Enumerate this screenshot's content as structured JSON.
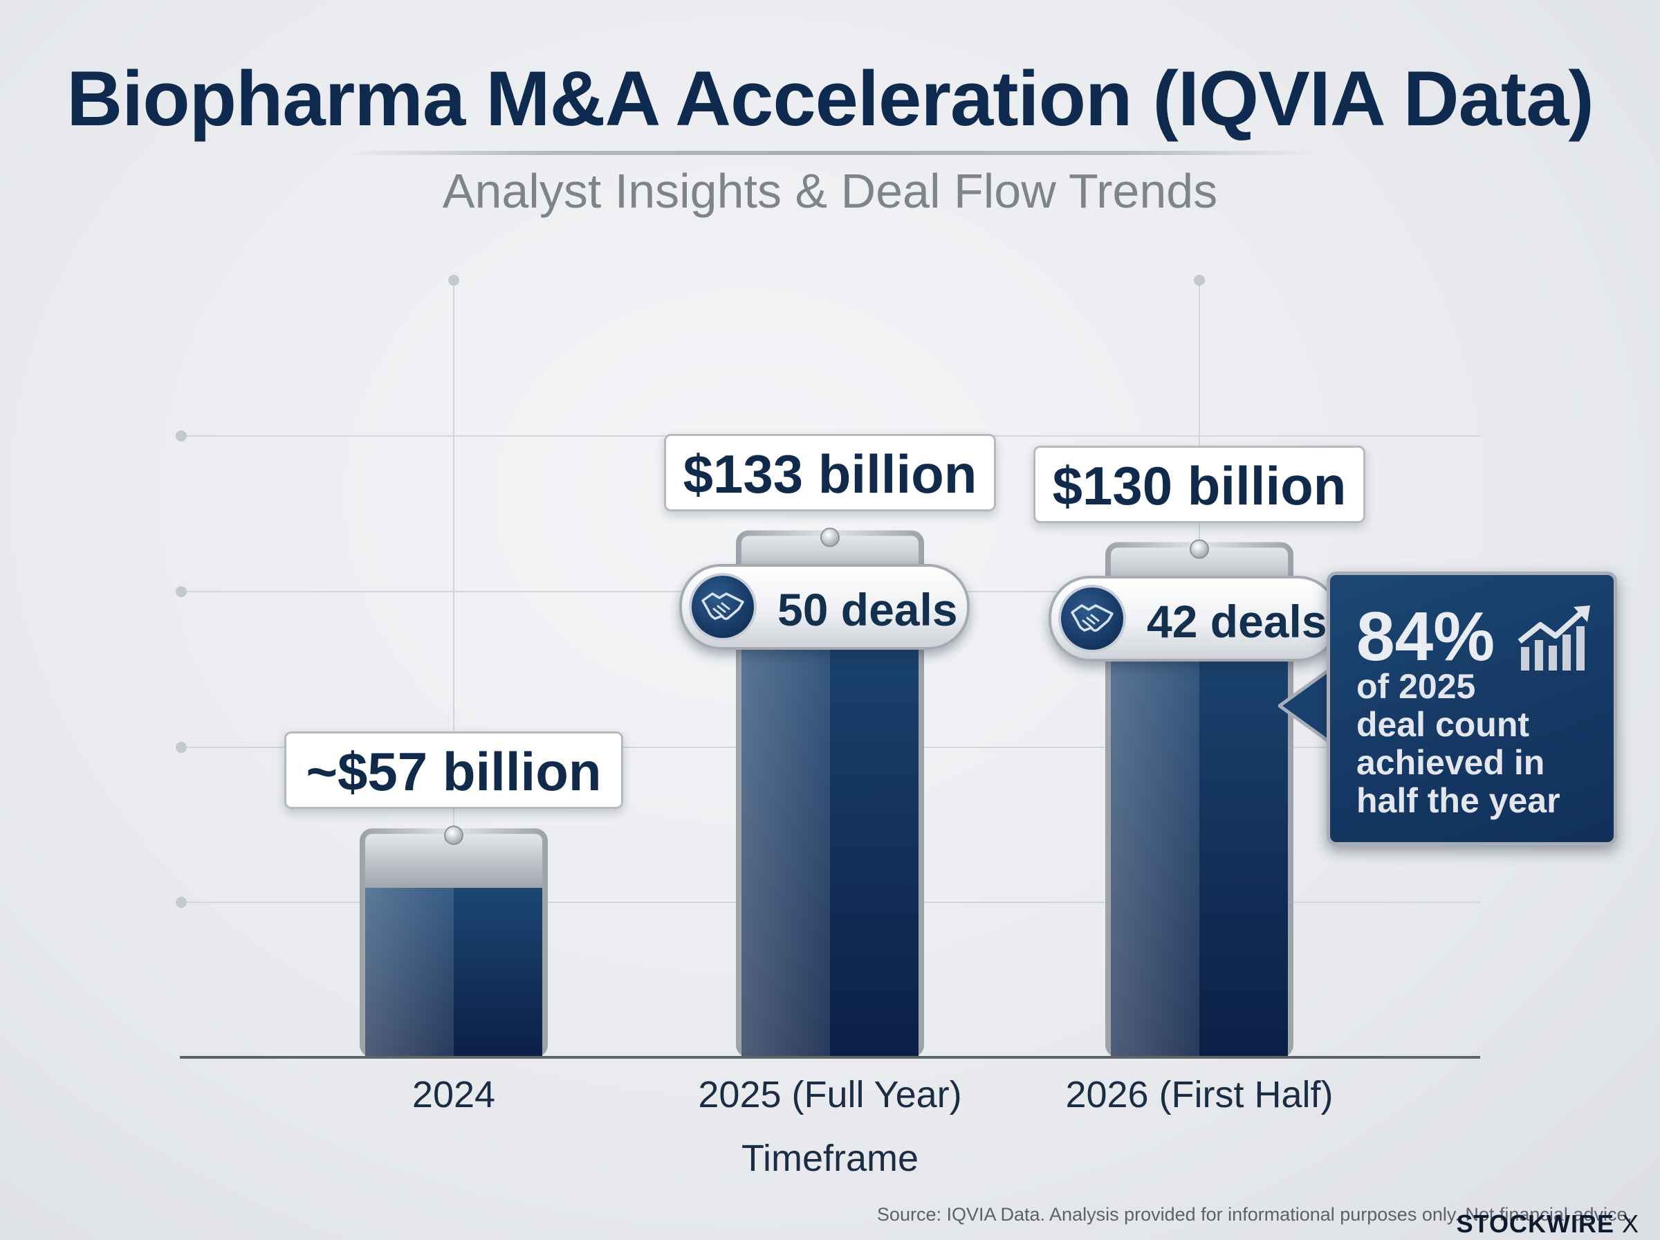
{
  "title": "Biopharma M&A Acceleration (IQVIA Data)",
  "subtitle": "Analyst Insights & Deal Flow Trends",
  "chart_data": {
    "type": "bar",
    "title": "Biopharma M&A Acceleration (IQVIA Data)",
    "subtitle": "Analyst Insights & Deal Flow Trends",
    "xlabel": "Timeframe",
    "ylabel": "",
    "categories": [
      "2024",
      "2025 (Full Year)",
      "2026 (First Half)"
    ],
    "series": [
      {
        "values": [
          57,
          133,
          130
        ]
      }
    ],
    "value_labels": [
      "~$57 billion",
      "$133 billion",
      "$130 billion"
    ],
    "deal_counts": [
      null,
      50,
      42
    ],
    "deal_labels": [
      "",
      "50 deals",
      "42 deals"
    ],
    "ylim": [
      0,
      200
    ],
    "grid": true,
    "colors": {
      "bar": "#0f2a52",
      "bar_top": "#b9bdc4",
      "axis": "#6b6f76"
    }
  },
  "callout": {
    "percent": "84%",
    "text_lines": [
      "of 2025",
      "deal count",
      "achieved in",
      "half the year"
    ]
  },
  "icons": {
    "deal": "handshake-icon",
    "trend": "trend-up-icon"
  },
  "footer": {
    "source": "Source: IQVIA Data. Analysis provided for informational purposes only. Not financial advice.",
    "brand": "STOCKWIRE",
    "brand_mark": "X"
  }
}
